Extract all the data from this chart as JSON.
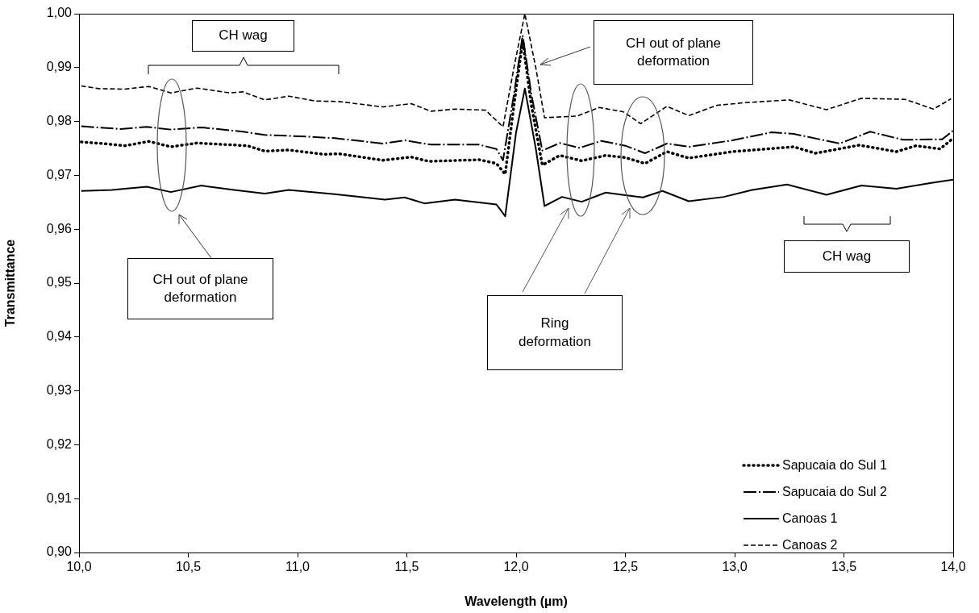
{
  "chart_data": {
    "type": "line",
    "xlabel": "Wavelength (µm)",
    "ylabel": "Transmittance",
    "xlim": [
      10,
      14
    ],
    "xticks": [
      {
        "value": 10,
        "label": "10,0"
      },
      {
        "value": 10.5,
        "label": "10,5"
      },
      {
        "value": 11,
        "label": "11,0"
      },
      {
        "value": 11.5,
        "label": "11,5"
      },
      {
        "value": 12,
        "label": "12,0"
      },
      {
        "value": 12.5,
        "label": "12,5"
      },
      {
        "value": 13,
        "label": "13,0"
      },
      {
        "value": 13.5,
        "label": "13,5"
      },
      {
        "value": 14,
        "label": "14,0"
      }
    ],
    "ylim": [
      0.9,
      1
    ],
    "yticks": [
      {
        "value": 0.9,
        "label": "0,90"
      },
      {
        "value": 0.91,
        "label": "0,91"
      },
      {
        "value": 0.92,
        "label": "0,92"
      },
      {
        "value": 0.93,
        "label": "0,93"
      },
      {
        "value": 0.94,
        "label": "0,94"
      },
      {
        "value": 0.95,
        "label": "0,95"
      },
      {
        "value": 0.96,
        "label": "0,96"
      },
      {
        "value": 0.97,
        "label": "0,97"
      },
      {
        "value": 0.98,
        "label": "0,98"
      },
      {
        "value": 0.99,
        "label": "0,99"
      },
      {
        "value": 1,
        "label": "1,00"
      }
    ],
    "grid": false,
    "legend": "bottom right",
    "marker": "none",
    "annotations": [
      "CH wag",
      "CH out of plane deformation",
      "CH out of plane deformation",
      "Ring deformation",
      "CH wag"
    ],
    "series": [
      {
        "name": "Sapucaia do Sul 1",
        "color": "#000000",
        "line_style": "dotted",
        "x": [
          10.01,
          10.11,
          10.21,
          10.32,
          10.42,
          10.54,
          10.77,
          10.85,
          10.96,
          11.12,
          11.19,
          11.39,
          11.52,
          11.6,
          11.83,
          11.91,
          11.95,
          11.99,
          12.03,
          12.07,
          12.12,
          12.2,
          12.3,
          12.41,
          12.5,
          12.59,
          12.69,
          12.79,
          12.99,
          13.27,
          13.37,
          13.57,
          13.74,
          13.83,
          13.94,
          14
        ],
        "values": [
          0.9762,
          0.9759,
          0.9755,
          0.9763,
          0.9753,
          0.976,
          0.9755,
          0.9745,
          0.9747,
          0.9739,
          0.974,
          0.9728,
          0.9734,
          0.9726,
          0.9729,
          0.9722,
          0.9702,
          0.983,
          0.995,
          0.983,
          0.9719,
          0.9737,
          0.9727,
          0.9737,
          0.9733,
          0.9722,
          0.9744,
          0.9732,
          0.9744,
          0.9753,
          0.9741,
          0.9756,
          0.9744,
          0.9755,
          0.9749,
          0.9769
        ]
      },
      {
        "name": "Sapucaia do Sul 2",
        "color": "#000000",
        "line_style": "dashdot",
        "x": [
          10.01,
          10.19,
          10.31,
          10.42,
          10.56,
          10.75,
          10.85,
          11.04,
          11.17,
          11.39,
          11.49,
          11.61,
          11.83,
          11.91,
          11.94,
          11.99,
          12.03,
          12.07,
          12.12,
          12.2,
          12.29,
          12.39,
          12.5,
          12.59,
          12.69,
          12.79,
          12.99,
          13.17,
          13.27,
          13.48,
          13.62,
          13.77,
          13.95,
          14
        ],
        "values": [
          0.9791,
          0.9786,
          0.979,
          0.9785,
          0.9789,
          0.9781,
          0.9775,
          0.9772,
          0.9769,
          0.9759,
          0.9765,
          0.9757,
          0.9757,
          0.9749,
          0.9728,
          0.985,
          0.996,
          0.985,
          0.9746,
          0.976,
          0.9751,
          0.9764,
          0.9755,
          0.9741,
          0.9759,
          0.9753,
          0.9765,
          0.978,
          0.9777,
          0.9759,
          0.9781,
          0.9766,
          0.9767,
          0.9783
        ]
      },
      {
        "name": "Canoas 1",
        "color": "#000000",
        "line_style": "solid",
        "x": [
          10.01,
          10.15,
          10.31,
          10.42,
          10.56,
          10.71,
          10.85,
          10.96,
          11.17,
          11.4,
          11.49,
          11.58,
          11.72,
          11.91,
          11.95,
          12,
          12.04,
          12.09,
          12.13,
          12.21,
          12.3,
          12.41,
          12.58,
          12.67,
          12.79,
          12.95,
          13.08,
          13.24,
          13.42,
          13.58,
          13.74,
          13.9,
          14
        ],
        "values": [
          0.9671,
          0.9673,
          0.9679,
          0.9669,
          0.9681,
          0.9673,
          0.9666,
          0.9673,
          0.9665,
          0.9655,
          0.9659,
          0.9648,
          0.9655,
          0.9646,
          0.9624,
          0.978,
          0.9861,
          0.975,
          0.9643,
          0.966,
          0.9651,
          0.9668,
          0.9659,
          0.9671,
          0.9652,
          0.966,
          0.9673,
          0.9683,
          0.9664,
          0.9681,
          0.9675,
          0.9686,
          0.9692
        ]
      },
      {
        "name": "Canoas 2",
        "color": "#000000",
        "line_style": "dashed",
        "x": [
          10.01,
          10.09,
          10.21,
          10.32,
          10.42,
          10.54,
          10.69,
          10.75,
          10.85,
          10.96,
          11.08,
          11.19,
          11.39,
          11.52,
          11.61,
          11.72,
          11.86,
          11.94,
          11.99,
          12.04,
          12.09,
          12.13,
          12.28,
          12.38,
          12.49,
          12.57,
          12.69,
          12.79,
          12.92,
          13.05,
          13.25,
          13.42,
          13.58,
          13.78,
          13.91,
          13.99
        ],
        "values": [
          0.9866,
          0.9861,
          0.986,
          0.9865,
          0.9853,
          0.9862,
          0.9853,
          0.9855,
          0.984,
          0.9847,
          0.9838,
          0.9837,
          0.9827,
          0.9833,
          0.9819,
          0.9823,
          0.9821,
          0.979,
          0.99,
          1,
          0.99,
          0.9807,
          0.981,
          0.9826,
          0.9818,
          0.9796,
          0.9828,
          0.9811,
          0.983,
          0.9835,
          0.984,
          0.9822,
          0.9843,
          0.9841,
          0.9823,
          0.9842
        ]
      }
    ]
  }
}
